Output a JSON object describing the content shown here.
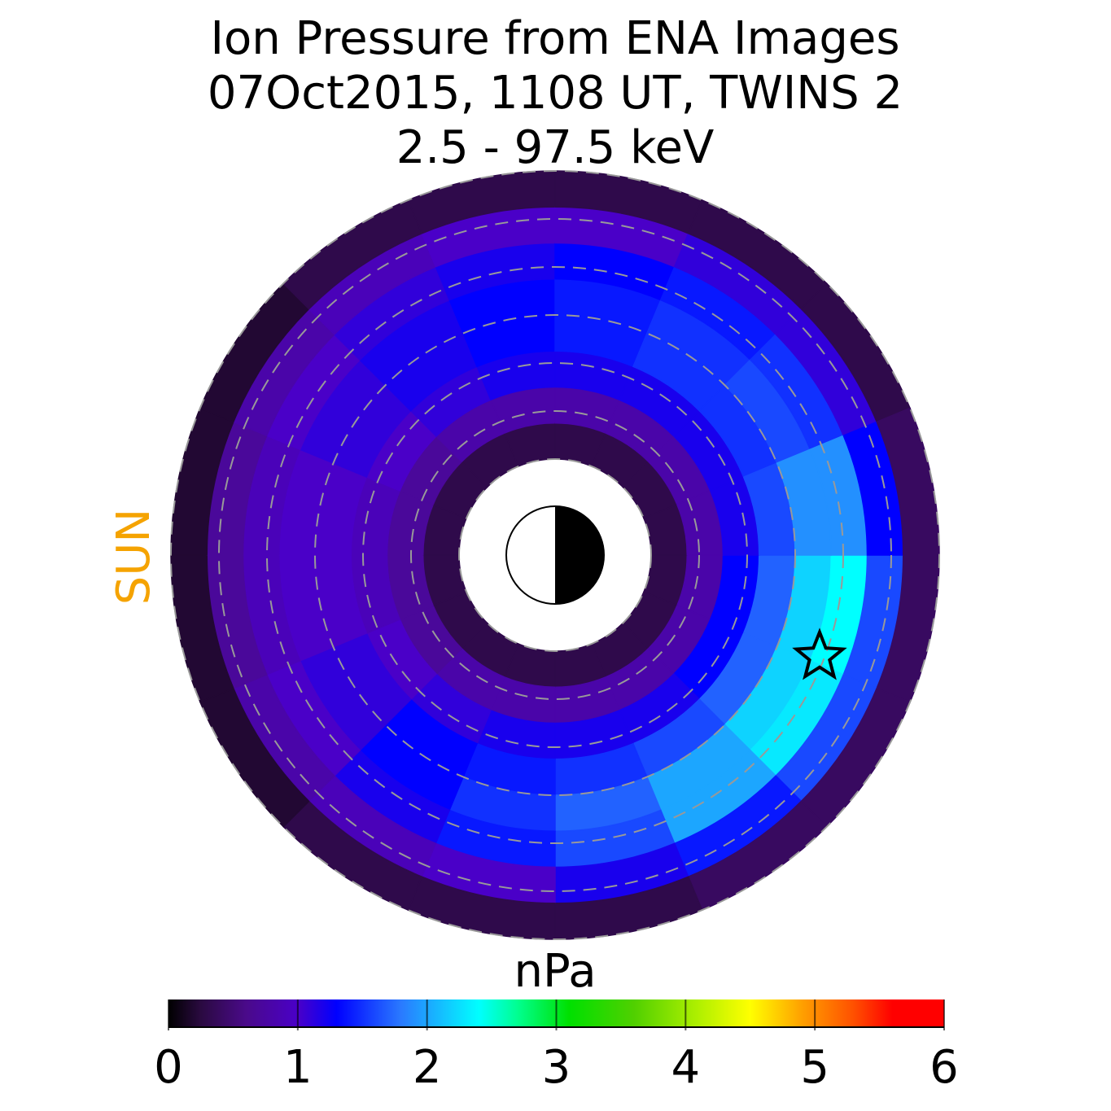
{
  "chart_data": {
    "type": "polar-heatmap",
    "title": [
      "Ion Pressure from  ENA Images",
      "07Oct2015, 1108 UT,  TWINS 2",
      "2.5 - 97.5 keV"
    ],
    "side_label": "SUN",
    "side_label_color": "#f5a300",
    "colorbar_label": "nPa",
    "rlim": [
      0,
      8
    ],
    "rticks": [
      2,
      3,
      4,
      5,
      6,
      7,
      8
    ],
    "grid": true,
    "r_edges": [
      2,
      2.75,
      3.5,
      4.25,
      5,
      5.75,
      6.5,
      7.25,
      8
    ],
    "theta_edges": [
      0,
      22.5,
      45,
      67.5,
      90,
      112.5,
      135,
      157.5,
      180,
      202.5,
      225,
      247.5,
      270,
      292.5,
      315,
      337.5,
      360
    ],
    "values": [
      [
        0.3,
        0.8,
        1.3,
        1.7,
        2.2,
        2.4,
        1.6,
        0.4
      ],
      [
        0.3,
        0.8,
        1.3,
        1.7,
        2.2,
        2.3,
        1.6,
        0.4
      ],
      [
        0.3,
        0.8,
        1.2,
        1.6,
        2.0,
        2.0,
        1.4,
        0.4
      ],
      [
        0.3,
        0.8,
        1.2,
        1.5,
        1.7,
        1.6,
        1.2,
        0.3
      ],
      [
        0.3,
        0.8,
        1.2,
        1.4,
        1.5,
        1.4,
        1.0,
        0.3
      ],
      [
        0.3,
        0.8,
        1.1,
        1.3,
        1.3,
        1.2,
        0.9,
        0.3
      ],
      [
        0.3,
        0.7,
        1.0,
        1.1,
        1.1,
        1.0,
        0.8,
        0.2
      ],
      [
        0.3,
        0.7,
        0.9,
        1.0,
        1.0,
        0.9,
        0.7,
        0.2
      ],
      [
        0.3,
        0.7,
        0.9,
        1.0,
        1.0,
        0.9,
        0.7,
        0.2
      ],
      [
        0.3,
        0.7,
        1.0,
        1.1,
        1.1,
        1.0,
        0.8,
        0.2
      ],
      [
        0.3,
        0.8,
        1.1,
        1.2,
        1.2,
        1.1,
        0.9,
        0.3
      ],
      [
        0.3,
        0.8,
        1.2,
        1.3,
        1.3,
        1.2,
        1.0,
        0.3
      ],
      [
        0.3,
        0.8,
        1.2,
        1.4,
        1.4,
        1.3,
        1.0,
        0.3
      ],
      [
        0.3,
        0.8,
        1.2,
        1.5,
        1.5,
        1.4,
        1.1,
        0.3
      ],
      [
        0.3,
        0.8,
        1.2,
        1.5,
        1.6,
        1.5,
        1.1,
        0.3
      ],
      [
        0.3,
        0.8,
        1.2,
        1.6,
        1.9,
        1.9,
        1.3,
        0.4
      ]
    ],
    "marker": {
      "r": 5.9,
      "theta": 21
    },
    "clim": [
      0,
      6
    ],
    "cticks": [
      0,
      1,
      2,
      3,
      4,
      5,
      6
    ],
    "colormap": [
      {
        "value": 0,
        "color": "#000000"
      },
      {
        "value": 0.25,
        "color": "#2a0a40"
      },
      {
        "value": 0.6,
        "color": "#4a0a8a"
      },
      {
        "value": 1.0,
        "color": "#4a00c8"
      },
      {
        "value": 1.3,
        "color": "#0000ff"
      },
      {
        "value": 1.8,
        "color": "#2a7aff"
      },
      {
        "value": 2.4,
        "color": "#00ffff"
      },
      {
        "value": 2.7,
        "color": "#00ff90"
      },
      {
        "value": 3.1,
        "color": "#00e000"
      },
      {
        "value": 3.6,
        "color": "#50d000"
      },
      {
        "value": 4.1,
        "color": "#b0f000"
      },
      {
        "value": 4.5,
        "color": "#ffff00"
      },
      {
        "value": 4.9,
        "color": "#ffa000"
      },
      {
        "value": 5.3,
        "color": "#ff5000"
      },
      {
        "value": 5.6,
        "color": "#ff0000"
      },
      {
        "value": 6,
        "color": "#ff0000"
      }
    ]
  }
}
